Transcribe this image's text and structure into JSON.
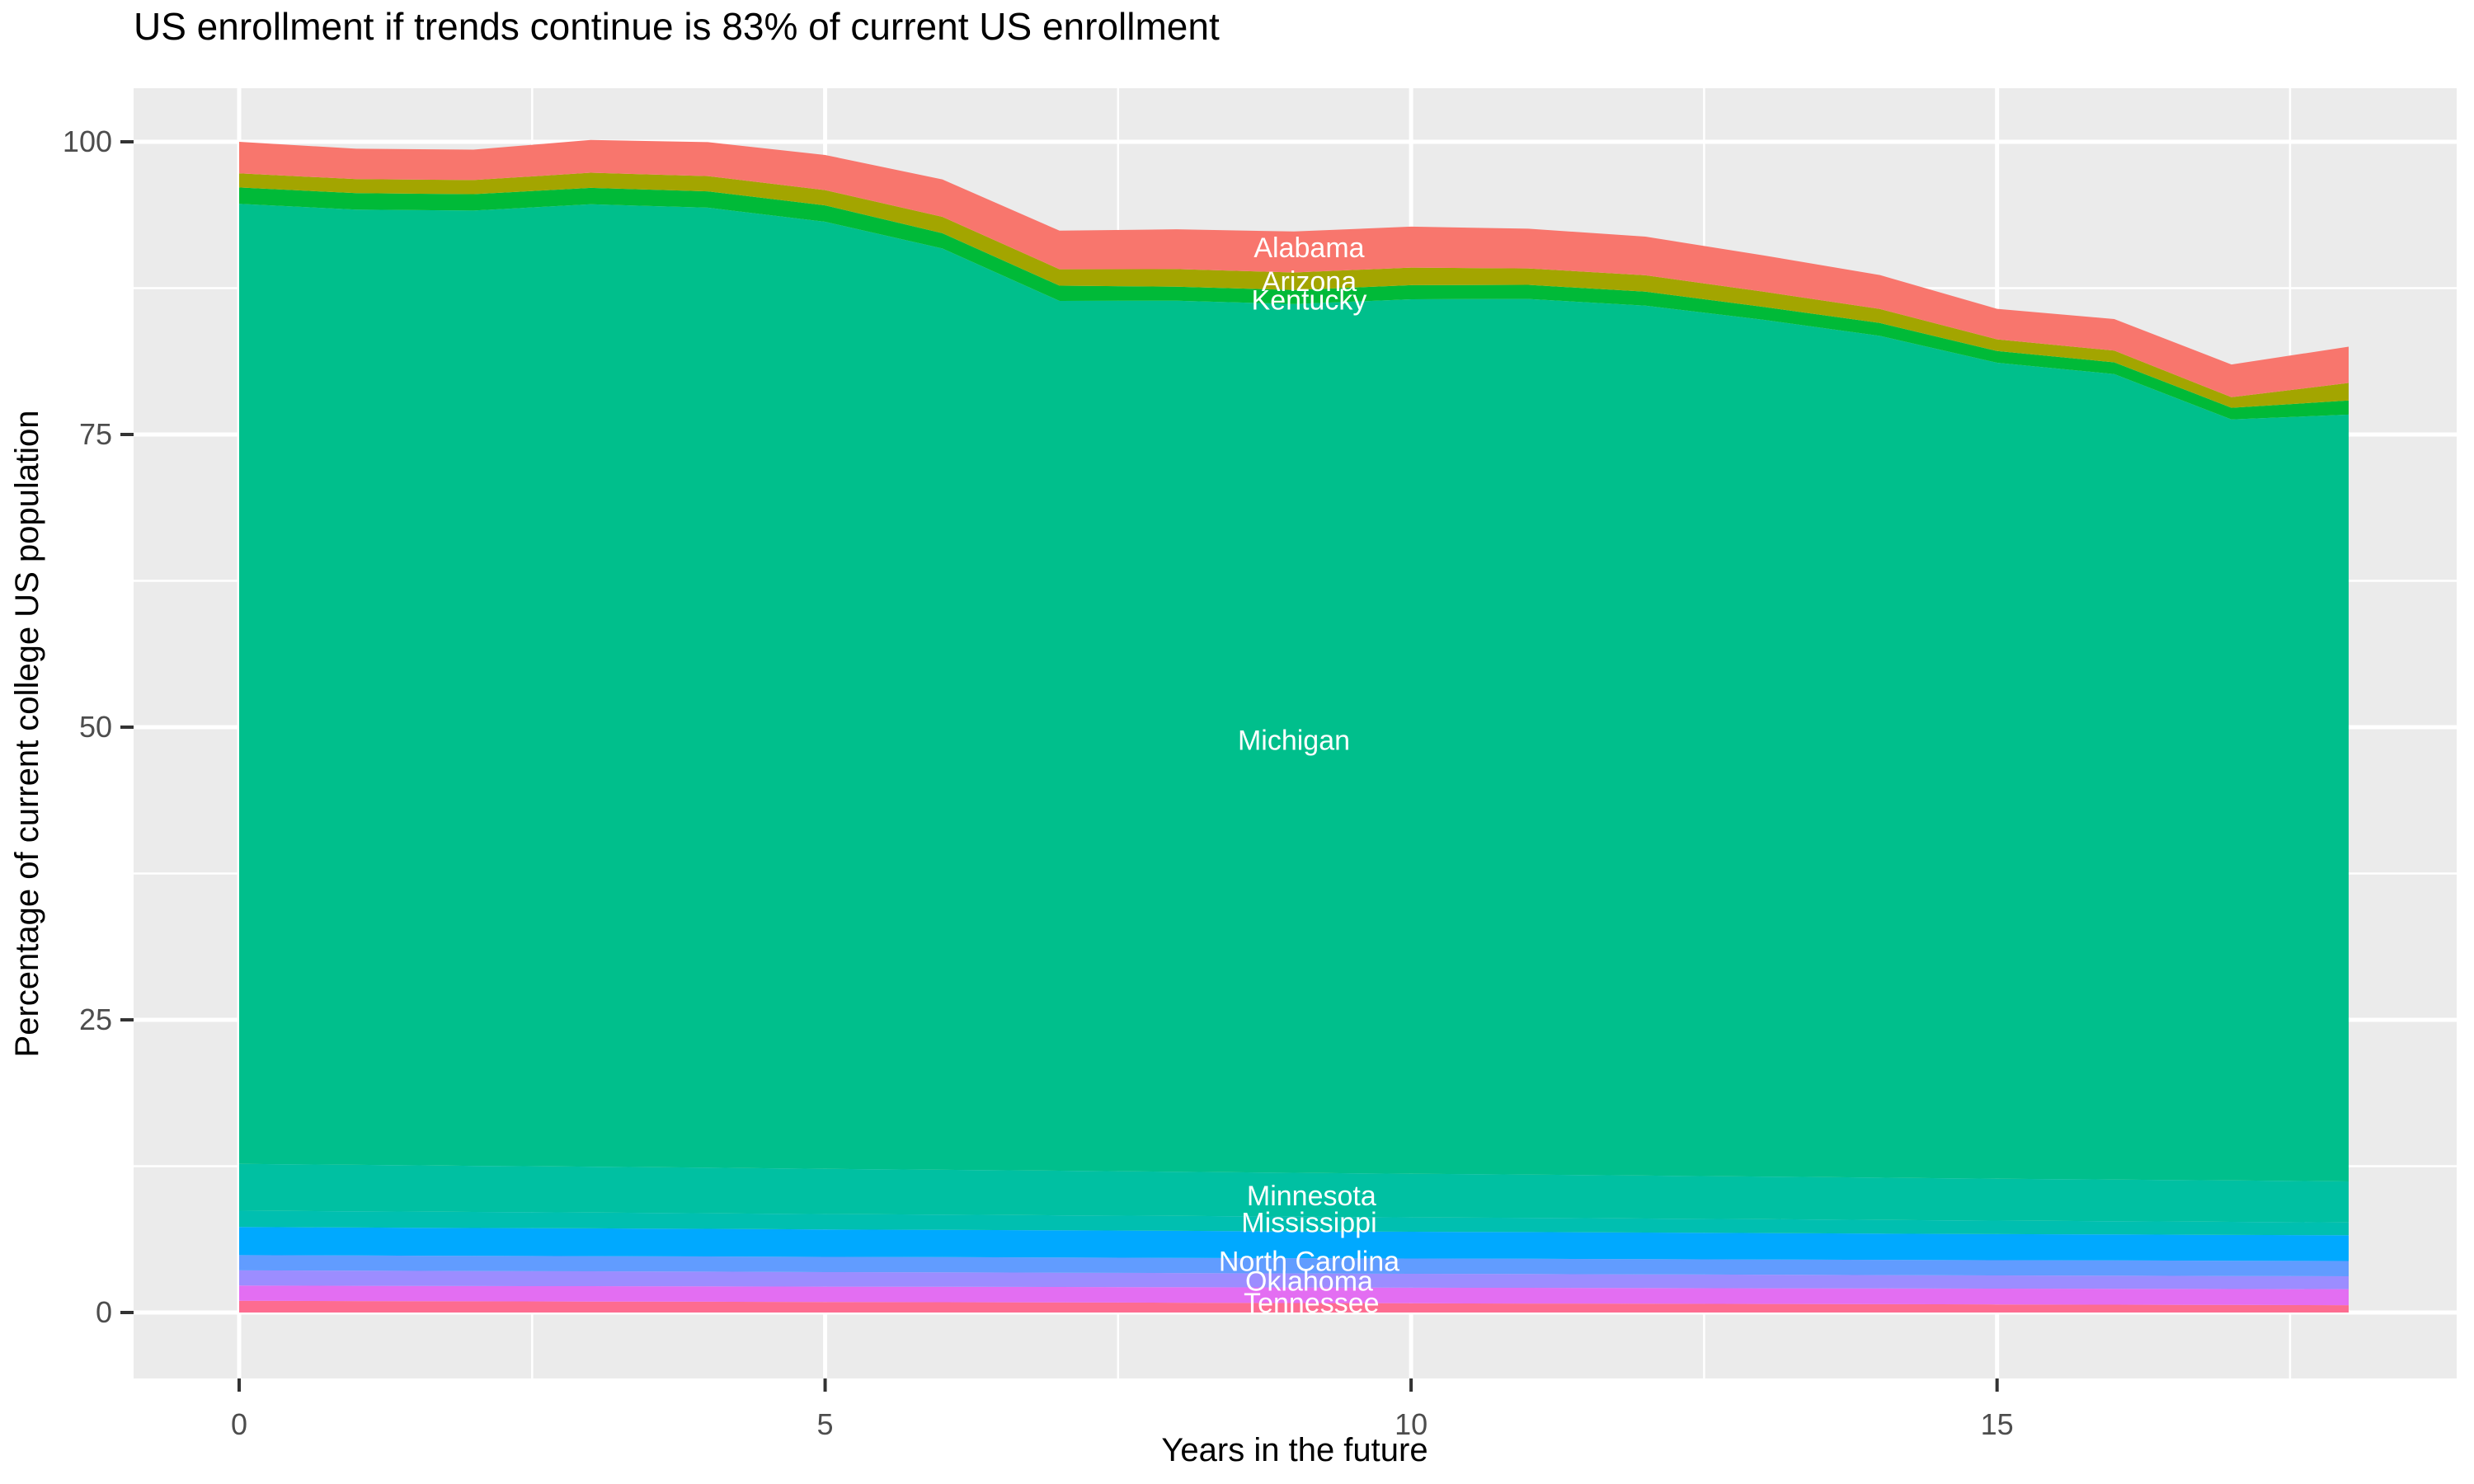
{
  "title": "US enrollment if trends continue is 83% of current US enrollment",
  "chart_data": {
    "type": "area",
    "stacked": true,
    "stack_order": "bottom_to_top",
    "title": "US enrollment if trends continue is 83% of current US enrollment",
    "xlabel": "Years in the future",
    "ylabel": "Percentage of current college US population",
    "xlim": [
      0,
      18
    ],
    "ylim": [
      0,
      100
    ],
    "x_ticks": [
      0,
      5,
      10,
      15
    ],
    "x_minor_ticks": [
      2.5,
      7.5,
      12.5,
      17.5
    ],
    "y_ticks": [
      0,
      25,
      50,
      75,
      100
    ],
    "y_minor_ticks": [
      12.5,
      37.5,
      62.5,
      87.5
    ],
    "grid": true,
    "legend": "none",
    "x": [
      0,
      1,
      2,
      3,
      4,
      5,
      6,
      7,
      8,
      9,
      10,
      11,
      12,
      13,
      14,
      15,
      16,
      17,
      18
    ],
    "series": [
      {
        "id": "band-11",
        "label": "",
        "color": "#FD6C90",
        "values": [
          1.0,
          0.98,
          0.96,
          0.94,
          0.92,
          0.9,
          0.88,
          0.86,
          0.84,
          0.81,
          0.79,
          0.77,
          0.75,
          0.73,
          0.71,
          0.69,
          0.67,
          0.65,
          0.63
        ]
      },
      {
        "id": "band-10",
        "label": "Tennessee",
        "color": "#E36EF2",
        "values": [
          1.3,
          1.3,
          1.3,
          1.31,
          1.31,
          1.31,
          1.32,
          1.32,
          1.32,
          1.33,
          1.33,
          1.34,
          1.34,
          1.34,
          1.35,
          1.35,
          1.36,
          1.36,
          1.37
        ]
      },
      {
        "id": "band-09",
        "label": "Oklahoma",
        "color": "#9C8DFF",
        "values": [
          1.3,
          1.29,
          1.28,
          1.27,
          1.26,
          1.24,
          1.23,
          1.22,
          1.21,
          1.2,
          1.19,
          1.18,
          1.17,
          1.16,
          1.14,
          1.13,
          1.12,
          1.11,
          1.1
        ]
      },
      {
        "id": "band-08",
        "label": "North Carolina",
        "color": "#619CFF",
        "values": [
          1.3,
          1.3,
          1.3,
          1.3,
          1.3,
          1.3,
          1.3,
          1.3,
          1.3,
          1.3,
          1.3,
          1.3,
          1.3,
          1.3,
          1.3,
          1.3,
          1.3,
          1.3,
          1.3
        ]
      },
      {
        "id": "band-07",
        "label": "",
        "color": "#00A9FF",
        "values": [
          2.4,
          2.39,
          2.38,
          2.37,
          2.36,
          2.34,
          2.33,
          2.32,
          2.31,
          2.3,
          2.29,
          2.28,
          2.27,
          2.26,
          2.24,
          2.23,
          2.22,
          2.21,
          2.2
        ]
      },
      {
        "id": "band-06",
        "label": "Mississippi",
        "color": "#00BFB0",
        "values": [
          1.4,
          1.38,
          1.37,
          1.35,
          1.33,
          1.32,
          1.3,
          1.28,
          1.27,
          1.25,
          1.23,
          1.22,
          1.2,
          1.18,
          1.17,
          1.15,
          1.13,
          1.12,
          1.1
        ]
      },
      {
        "id": "band-05",
        "label": "Minnesota",
        "color": "#00C0A2",
        "values": [
          4.0,
          3.97,
          3.94,
          3.92,
          3.89,
          3.86,
          3.83,
          3.81,
          3.78,
          3.75,
          3.72,
          3.69,
          3.67,
          3.64,
          3.61,
          3.58,
          3.56,
          3.53,
          3.5
        ]
      },
      {
        "id": "band-04",
        "label": "Michigan",
        "color": "#00BF8C",
        "values": [
          82.0,
          81.6,
          81.6,
          82.2,
          82.0,
          80.9,
          78.7,
          74.3,
          74.4,
          74.2,
          74.7,
          74.8,
          74.3,
          73.2,
          71.9,
          69.7,
          68.8,
          65.0,
          65.5
        ]
      },
      {
        "id": "band-03",
        "label": "Kentucky",
        "color": "#00BA38",
        "values": [
          1.4,
          1.4,
          1.4,
          1.4,
          1.4,
          1.4,
          1.3,
          1.3,
          1.2,
          1.2,
          1.2,
          1.2,
          1.2,
          1.1,
          1.1,
          1.0,
          1.0,
          1.0,
          1.2
        ]
      },
      {
        "id": "band-02",
        "label": "Arizona",
        "color": "#A3A500",
        "values": [
          1.2,
          1.2,
          1.2,
          1.3,
          1.3,
          1.3,
          1.4,
          1.4,
          1.5,
          1.5,
          1.5,
          1.4,
          1.4,
          1.3,
          1.2,
          1.0,
          1.0,
          0.9,
          1.5
        ]
      },
      {
        "id": "band-01",
        "label": "Alabama",
        "color": "#F8766D",
        "values": [
          2.7,
          2.6,
          2.6,
          2.8,
          2.9,
          3.0,
          3.2,
          3.3,
          3.4,
          3.5,
          3.5,
          3.4,
          3.3,
          3.1,
          2.9,
          2.6,
          2.7,
          2.8,
          3.1
        ]
      }
    ],
    "area_labels": [
      {
        "text": "Alabama",
        "x": 9.13,
        "y": 91.0
      },
      {
        "text": "Arizona",
        "x": 9.13,
        "y": 88.1
      },
      {
        "text": "Kentucky",
        "x": 9.13,
        "y": 86.5
      },
      {
        "text": "Michigan",
        "x": 9.0,
        "y": 48.9
      },
      {
        "text": "Minnesota",
        "x": 9.15,
        "y": 10.0
      },
      {
        "text": "Mississippi",
        "x": 9.13,
        "y": 7.7
      },
      {
        "text": "North Carolina",
        "x": 9.13,
        "y": 4.4
      },
      {
        "text": "Oklahoma",
        "x": 9.13,
        "y": 2.7
      },
      {
        "text": "Tennessee",
        "x": 9.15,
        "y": 0.85
      }
    ]
  },
  "style": {
    "background": "#FFFFFF",
    "panel_background": "#EBEBEB",
    "grid_color": "#FFFFFF",
    "axis_text_color": "#4D4D4D",
    "tick_mark_color": "#333333",
    "title_color": "#000000",
    "area_label_color": "#FFFFFF"
  }
}
